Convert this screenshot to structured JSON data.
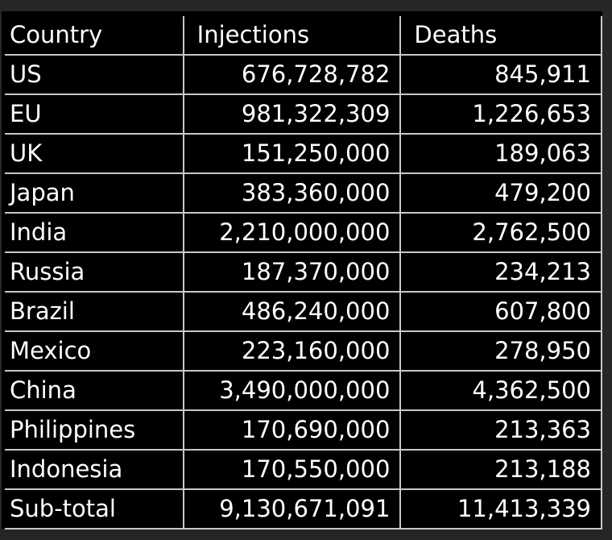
{
  "table": {
    "headers": [
      "Country",
      "Injections",
      "Deaths"
    ],
    "rows": [
      {
        "country": "US",
        "injections": "676,728,782",
        "deaths": "845,911"
      },
      {
        "country": "EU",
        "injections": "981,322,309",
        "deaths": "1,226,653"
      },
      {
        "country": "UK",
        "injections": "151,250,000",
        "deaths": "189,063"
      },
      {
        "country": "Japan",
        "injections": "383,360,000",
        "deaths": "479,200"
      },
      {
        "country": "India",
        "injections": "2,210,000,000",
        "deaths": "2,762,500"
      },
      {
        "country": "Russia",
        "injections": "187,370,000",
        "deaths": "234,213"
      },
      {
        "country": "Brazil",
        "injections": "486,240,000",
        "deaths": "607,800"
      },
      {
        "country": "Mexico",
        "injections": "223,160,000",
        "deaths": "278,950"
      },
      {
        "country": "China",
        "injections": "3,490,000,000",
        "deaths": "4,362,500"
      },
      {
        "country": "Philippines",
        "injections": "170,690,000",
        "deaths": "213,363"
      },
      {
        "country": "Indonesia",
        "injections": "170,550,000",
        "deaths": "213,188"
      },
      {
        "country": "Sub-total",
        "injections": "9,130,671,091",
        "deaths": "11,413,339"
      }
    ]
  }
}
